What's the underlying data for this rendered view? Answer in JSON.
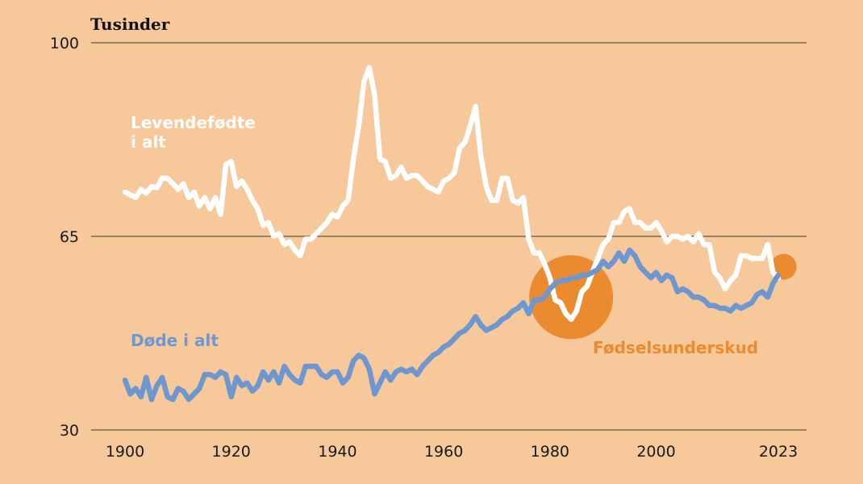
{
  "chart_data": {
    "type": "line",
    "y_unit_label": "Tusinder",
    "ylim": [
      30,
      100
    ],
    "y_ticks": [
      100,
      65,
      30
    ],
    "x_ticks": [
      1900,
      1920,
      1940,
      1960,
      1980,
      2000,
      2023
    ],
    "x_tick_labels": [
      "1900",
      "1920",
      "1940",
      "1960",
      "1980",
      "2000",
      "2023"
    ],
    "colors": {
      "background": "#f6c89a",
      "births": "#ffffff",
      "deaths": "#6f97cf",
      "deficit": "#ec8a2f"
    },
    "series": [
      {
        "name": "Levendefødte i alt",
        "label_lines": [
          "Levendefødte",
          "i alt"
        ],
        "color": "#ffffff",
        "x": [
          1900,
          1901,
          1902,
          1903,
          1904,
          1905,
          1906,
          1907,
          1908,
          1909,
          1910,
          1911,
          1912,
          1913,
          1914,
          1915,
          1916,
          1917,
          1918,
          1919,
          1920,
          1921,
          1922,
          1923,
          1924,
          1925,
          1926,
          1927,
          1928,
          1929,
          1930,
          1931,
          1932,
          1933,
          1934,
          1935,
          1936,
          1937,
          1938,
          1939,
          1940,
          1941,
          1942,
          1943,
          1944,
          1945,
          1946,
          1947,
          1948,
          1949,
          1950,
          1951,
          1952,
          1953,
          1954,
          1955,
          1956,
          1957,
          1958,
          1959,
          1960,
          1961,
          1962,
          1963,
          1964,
          1965,
          1966,
          1967,
          1968,
          1969,
          1970,
          1971,
          1972,
          1973,
          1974,
          1975,
          1976,
          1977,
          1978,
          1979,
          1980,
          1981,
          1982,
          1983,
          1984,
          1985,
          1986,
          1987,
          1988,
          1989,
          1990,
          1991,
          1992,
          1993,
          1994,
          1995,
          1996,
          1997,
          1998,
          1999,
          2000,
          2001,
          2002,
          2003,
          2004,
          2005,
          2006,
          2007,
          2008,
          2009,
          2010,
          2011,
          2012,
          2013,
          2014,
          2015,
          2016,
          2017,
          2018,
          2019,
          2020,
          2021,
          2022,
          2023
        ],
        "values": [
          73.0,
          72.5,
          72.0,
          73.5,
          72.8,
          74.0,
          73.8,
          75.5,
          75.5,
          74.5,
          73.5,
          74.5,
          72.0,
          73.0,
          70.5,
          72.0,
          70.0,
          72.0,
          69.0,
          78.0,
          78.5,
          74.0,
          75.0,
          73.5,
          71.5,
          70.0,
          67.0,
          67.5,
          65.0,
          65.5,
          63.5,
          64.0,
          62.5,
          61.5,
          64.5,
          64.5,
          65.5,
          66.5,
          67.5,
          69.0,
          68.5,
          70.5,
          71.5,
          79.0,
          85.0,
          93.0,
          95.5,
          90.5,
          79.0,
          78.5,
          75.5,
          76.0,
          77.5,
          75.5,
          76.0,
          76.0,
          75.0,
          74.0,
          73.5,
          73.0,
          75.0,
          75.5,
          76.5,
          81.0,
          82.0,
          85.0,
          88.5,
          79.5,
          74.0,
          71.5,
          71.5,
          75.5,
          75.5,
          71.5,
          71.0,
          72.0,
          64.5,
          62.0,
          62.0,
          60.0,
          57.5,
          53.5,
          53.0,
          51.0,
          50.0,
          51.5,
          55.0,
          56.0,
          58.5,
          61.0,
          63.5,
          64.5,
          67.5,
          67.5,
          69.5,
          70.0,
          67.5,
          67.5,
          66.5,
          66.5,
          67.5,
          66.0,
          64.0,
          65.0,
          65.0,
          64.5,
          65.0,
          64.0,
          65.5,
          63.5,
          63.5,
          58.5,
          57.5,
          55.5,
          57.0,
          58.0,
          61.5,
          61.5,
          61.0,
          61.0,
          61.0,
          63.5,
          58.5,
          57.5
        ]
      },
      {
        "name": "Døde i alt",
        "label_lines": [
          "Døde i alt"
        ],
        "color": "#6f97cf",
        "x": [
          1900,
          1901,
          1902,
          1903,
          1904,
          1905,
          1906,
          1907,
          1908,
          1909,
          1910,
          1911,
          1912,
          1913,
          1914,
          1915,
          1916,
          1917,
          1918,
          1919,
          1920,
          1921,
          1922,
          1923,
          1924,
          1925,
          1926,
          1927,
          1928,
          1929,
          1930,
          1931,
          1932,
          1933,
          1934,
          1935,
          1936,
          1937,
          1938,
          1939,
          1940,
          1941,
          1942,
          1943,
          1944,
          1945,
          1946,
          1947,
          1948,
          1949,
          1950,
          1951,
          1952,
          1953,
          1954,
          1955,
          1956,
          1957,
          1958,
          1959,
          1960,
          1961,
          1962,
          1963,
          1964,
          1965,
          1966,
          1967,
          1968,
          1969,
          1970,
          1971,
          1972,
          1973,
          1974,
          1975,
          1976,
          1977,
          1978,
          1979,
          1980,
          1981,
          1982,
          1983,
          1984,
          1985,
          1986,
          1987,
          1988,
          1989,
          1990,
          1991,
          1992,
          1993,
          1994,
          1995,
          1996,
          1997,
          1998,
          1999,
          2000,
          2001,
          2002,
          2003,
          2004,
          2005,
          2006,
          2007,
          2008,
          2009,
          2010,
          2011,
          2012,
          2013,
          2014,
          2015,
          2016,
          2017,
          2018,
          2019,
          2020,
          2021,
          2022,
          2023
        ],
        "values": [
          39.0,
          36.5,
          37.5,
          36.0,
          39.5,
          35.5,
          38.0,
          39.5,
          36.0,
          35.5,
          37.5,
          37.0,
          35.5,
          36.5,
          37.5,
          40.0,
          40.0,
          39.5,
          40.5,
          40.0,
          36.0,
          39.5,
          38.0,
          38.5,
          37.0,
          38.0,
          40.5,
          39.0,
          40.5,
          38.5,
          41.5,
          40.0,
          39.0,
          38.5,
          41.5,
          41.5,
          41.5,
          40.0,
          39.5,
          40.5,
          40.5,
          38.5,
          39.5,
          42.5,
          43.5,
          43.0,
          41.0,
          36.5,
          38.5,
          40.5,
          39.0,
          40.5,
          41.0,
          40.5,
          41.0,
          40.0,
          41.5,
          42.5,
          43.5,
          44.0,
          45.0,
          45.5,
          46.5,
          47.5,
          48.0,
          49.0,
          50.5,
          49.0,
          48.0,
          48.5,
          49.0,
          50.0,
          50.5,
          51.5,
          52.0,
          53.0,
          51.0,
          53.5,
          53.5,
          54.0,
          55.5,
          56.5,
          57.0,
          57.0,
          57.5,
          57.5,
          58.0,
          58.0,
          58.5,
          59.0,
          60.5,
          59.5,
          60.5,
          62.0,
          60.5,
          62.5,
          61.5,
          59.5,
          58.5,
          57.5,
          58.5,
          57.0,
          58.0,
          57.5,
          55.0,
          55.5,
          55.0,
          54.0,
          54.0,
          53.5,
          52.5,
          52.5,
          52.0,
          52.0,
          51.5,
          52.5,
          52.0,
          52.5,
          53.0,
          54.5,
          55.0,
          54.0,
          56.5,
          58.0
        ]
      }
    ],
    "annotation": {
      "label": "Fødselsunderskud",
      "color": "#ec8a2f",
      "main_circle_year": 1984,
      "main_circle_value": 54.0,
      "small_circle_year": 2024,
      "small_circle_value": 59.5
    }
  }
}
